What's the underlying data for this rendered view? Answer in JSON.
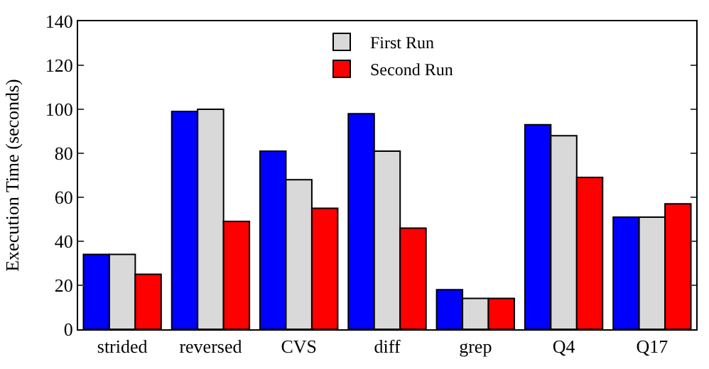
{
  "chart_data": {
    "type": "bar",
    "ylabel": "Execution Time (seconds)",
    "categories": [
      "strided",
      "reversed",
      "CVS",
      "diff",
      "grep",
      "Q4",
      "Q17"
    ],
    "series": [
      {
        "color": "#0000ff",
        "values": [
          34,
          99,
          81,
          98,
          18,
          93,
          51
        ]
      },
      {
        "name": "First Run",
        "color": "#d9d9d9",
        "values": [
          34,
          100,
          68,
          81,
          14,
          88,
          51
        ]
      },
      {
        "name": "Second Run",
        "color": "#ff0000",
        "values": [
          25,
          49,
          55,
          46,
          14,
          69,
          57
        ]
      }
    ],
    "ylim": [
      0,
      140
    ],
    "yticks": [
      0,
      20,
      40,
      60,
      80,
      100,
      120,
      140
    ],
    "legend": "top"
  }
}
